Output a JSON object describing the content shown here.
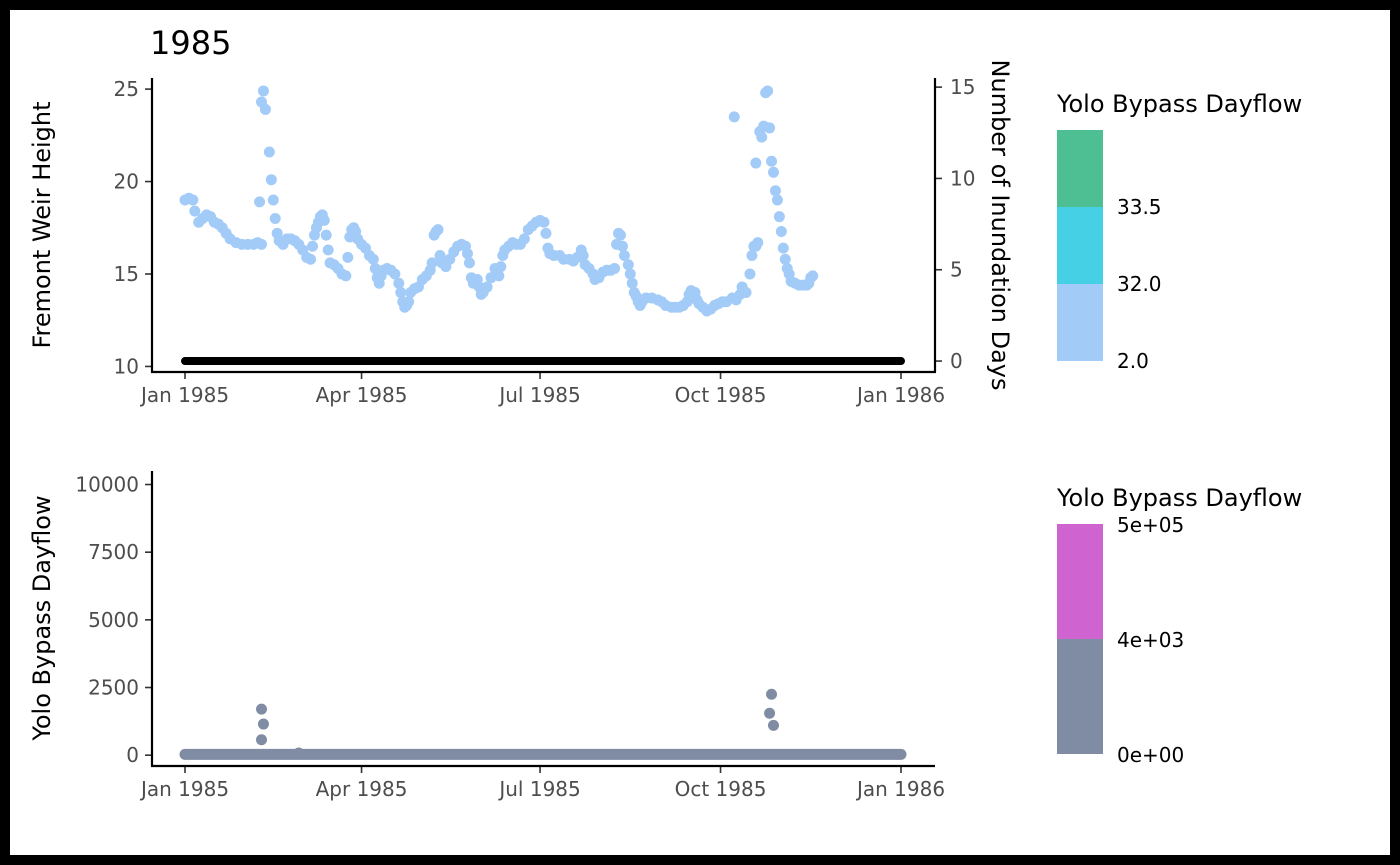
{
  "chart_data": [
    {
      "type": "scatter",
      "title": "1985",
      "ylabel": "Fremont Weir Height",
      "ylabel_right": "Number of Inundation Days",
      "x_ticks": [
        "Jan 1985",
        "Apr 1985",
        "Jul 1985",
        "Oct 1985",
        "Jan 1986"
      ],
      "x_tick_days": [
        0,
        90,
        181,
        273,
        365
      ],
      "ylim": [
        9.7,
        25.6
      ],
      "y_ticks": [
        10,
        15,
        20,
        25
      ],
      "ylim_right": [
        -0.6,
        15.5
      ],
      "y_ticks_right": [
        0,
        5,
        10,
        15
      ],
      "grid": false,
      "series": [
        {
          "color": "#a3cbf8",
          "points": [
            [
              0,
              19.0
            ],
            [
              2,
              19.1
            ],
            [
              4,
              19.0
            ],
            [
              5,
              18.4
            ],
            [
              7,
              17.8
            ],
            [
              9,
              18.0
            ],
            [
              11,
              18.2
            ],
            [
              13,
              18.1
            ],
            [
              15,
              17.8
            ],
            [
              17,
              17.7
            ],
            [
              19,
              17.5
            ],
            [
              21,
              17.2
            ],
            [
              23,
              16.9
            ],
            [
              26,
              16.7
            ],
            [
              29,
              16.6
            ],
            [
              32,
              16.6
            ],
            [
              35,
              16.6
            ],
            [
              37,
              16.7
            ],
            [
              39,
              16.6
            ],
            [
              38,
              18.9
            ],
            [
              39,
              24.3
            ],
            [
              40,
              24.9
            ],
            [
              41,
              23.9
            ],
            [
              43,
              21.6
            ],
            [
              44,
              20.1
            ],
            [
              45,
              19.0
            ],
            [
              46,
              18.0
            ],
            [
              47,
              17.2
            ],
            [
              48,
              16.8
            ],
            [
              50,
              16.6
            ],
            [
              52,
              16.9
            ],
            [
              54,
              16.9
            ],
            [
              56,
              16.8
            ],
            [
              58,
              16.6
            ],
            [
              60,
              16.3
            ],
            [
              62,
              15.9
            ],
            [
              64,
              15.8
            ],
            [
              65,
              16.5
            ],
            [
              66,
              17.1
            ],
            [
              67,
              17.5
            ],
            [
              68,
              17.8
            ],
            [
              69,
              18.1
            ],
            [
              70,
              18.2
            ],
            [
              71,
              17.9
            ],
            [
              72,
              17.1
            ],
            [
              73,
              16.3
            ],
            [
              74,
              15.6
            ],
            [
              76,
              15.5
            ],
            [
              78,
              15.3
            ],
            [
              80,
              15.0
            ],
            [
              82,
              14.9
            ],
            [
              83,
              15.9
            ],
            [
              84,
              17.0
            ],
            [
              85,
              17.4
            ],
            [
              86,
              17.5
            ],
            [
              87,
              17.3
            ],
            [
              88,
              16.9
            ],
            [
              90,
              16.6
            ],
            [
              92,
              16.4
            ],
            [
              94,
              16.0
            ],
            [
              96,
              15.8
            ],
            [
              97,
              15.3
            ],
            [
              98,
              14.8
            ],
            [
              99,
              14.5
            ],
            [
              100,
              14.9
            ],
            [
              101,
              15.2
            ],
            [
              103,
              15.3
            ],
            [
              105,
              15.2
            ],
            [
              107,
              15.0
            ],
            [
              109,
              14.5
            ],
            [
              110,
              14.0
            ],
            [
              111,
              13.5
            ],
            [
              112,
              13.2
            ],
            [
              113,
              13.3
            ],
            [
              114,
              13.5
            ],
            [
              115,
              14.0
            ],
            [
              117,
              14.2
            ],
            [
              119,
              14.3
            ],
            [
              121,
              14.7
            ],
            [
              123,
              14.9
            ],
            [
              125,
              15.2
            ],
            [
              126,
              15.6
            ],
            [
              127,
              17.1
            ],
            [
              128,
              17.3
            ],
            [
              129,
              17.4
            ],
            [
              130,
              16.0
            ],
            [
              131,
              15.6
            ],
            [
              133,
              15.4
            ],
            [
              135,
              15.8
            ],
            [
              137,
              16.2
            ],
            [
              139,
              16.5
            ],
            [
              141,
              16.6
            ],
            [
              143,
              16.5
            ],
            [
              144,
              16.1
            ],
            [
              145,
              15.6
            ],
            [
              146,
              14.8
            ],
            [
              147,
              14.5
            ],
            [
              149,
              14.7
            ],
            [
              150,
              14.3
            ],
            [
              151,
              13.9
            ],
            [
              152,
              14.0
            ],
            [
              154,
              14.3
            ],
            [
              156,
              14.8
            ],
            [
              158,
              15.3
            ],
            [
              159,
              15.2
            ],
            [
              160,
              14.9
            ],
            [
              161,
              15.4
            ],
            [
              162,
              16.0
            ],
            [
              163,
              16.3
            ],
            [
              165,
              16.5
            ],
            [
              167,
              16.7
            ],
            [
              169,
              16.6
            ],
            [
              171,
              16.6
            ],
            [
              173,
              16.9
            ],
            [
              175,
              17.4
            ],
            [
              177,
              17.6
            ],
            [
              179,
              17.8
            ],
            [
              181,
              17.9
            ],
            [
              183,
              17.8
            ],
            [
              184,
              17.2
            ],
            [
              185,
              16.4
            ],
            [
              186,
              16.1
            ],
            [
              188,
              16.0
            ],
            [
              191,
              16.0
            ],
            [
              193,
              15.8
            ],
            [
              196,
              15.8
            ],
            [
              198,
              15.7
            ],
            [
              200,
              15.9
            ],
            [
              202,
              16.3
            ],
            [
              203,
              16.0
            ],
            [
              204,
              15.5
            ],
            [
              206,
              15.3
            ],
            [
              208,
              15.0
            ],
            [
              209,
              14.7
            ],
            [
              211,
              14.8
            ],
            [
              213,
              15.1
            ],
            [
              215,
              15.2
            ],
            [
              217,
              15.2
            ],
            [
              219,
              15.3
            ],
            [
              220,
              16.6
            ],
            [
              221,
              17.2
            ],
            [
              222,
              17.1
            ],
            [
              223,
              16.5
            ],
            [
              224,
              16.0
            ],
            [
              226,
              15.5
            ],
            [
              227,
              15.0
            ],
            [
              228,
              14.5
            ],
            [
              229,
              14.0
            ],
            [
              230,
              13.8
            ],
            [
              231,
              13.5
            ],
            [
              232,
              13.3
            ],
            [
              233,
              13.5
            ],
            [
              235,
              13.7
            ],
            [
              238,
              13.7
            ],
            [
              241,
              13.6
            ],
            [
              243,
              13.5
            ],
            [
              245,
              13.3
            ],
            [
              248,
              13.2
            ],
            [
              250,
              13.2
            ],
            [
              252,
              13.2
            ],
            [
              254,
              13.3
            ],
            [
              256,
              13.5
            ],
            [
              257,
              13.9
            ],
            [
              258,
              14.1
            ],
            [
              260,
              14.0
            ],
            [
              261,
              13.6
            ],
            [
              262,
              13.4
            ],
            [
              264,
              13.2
            ],
            [
              266,
              13.0
            ],
            [
              268,
              13.1
            ],
            [
              270,
              13.3
            ],
            [
              272,
              13.4
            ],
            [
              274,
              13.5
            ],
            [
              276,
              13.5
            ],
            [
              279,
              13.7
            ],
            [
              281,
              13.6
            ],
            [
              283,
              13.9
            ],
            [
              284,
              14.3
            ],
            [
              286,
              14.0
            ],
            [
              288,
              15.0
            ],
            [
              289,
              16.0
            ],
            [
              290,
              16.5
            ],
            [
              291,
              16.5
            ],
            [
              292,
              16.7
            ],
            [
              280,
              23.5
            ],
            [
              291,
              21.0
            ],
            [
              293,
              22.7
            ],
            [
              294,
              22.4
            ],
            [
              295,
              23.0
            ],
            [
              296,
              24.8
            ],
            [
              297,
              24.9
            ],
            [
              298,
              22.9
            ],
            [
              299,
              21.1
            ],
            [
              300,
              20.5
            ],
            [
              301,
              19.5
            ],
            [
              302,
              19.0
            ],
            [
              303,
              18.1
            ],
            [
              304,
              17.3
            ],
            [
              305,
              16.4
            ],
            [
              306,
              15.8
            ],
            [
              307,
              15.3
            ],
            [
              308,
              15.0
            ],
            [
              309,
              14.6
            ],
            [
              311,
              14.5
            ],
            [
              313,
              14.4
            ],
            [
              315,
              14.4
            ],
            [
              317,
              14.4
            ],
            [
              318,
              14.5
            ],
            [
              319,
              14.8
            ],
            [
              320,
              14.9
            ]
          ]
        },
        {
          "color": "#000000",
          "y_axis": "right",
          "x_range": [
            0,
            365
          ],
          "value": 0
        }
      ],
      "legend": {
        "title": "Yolo Bypass Dayflow",
        "placement": "right",
        "bins": [
          {
            "color": "#a3cbf8",
            "label": "2.0"
          },
          {
            "color": "#45d0e6",
            "label": "32.0"
          },
          {
            "color": "#4dbf92",
            "label": "33.5"
          }
        ]
      }
    },
    {
      "type": "scatter",
      "ylabel": "Yolo Bypass Dayflow",
      "x_ticks": [
        "Jan 1985",
        "Apr 1985",
        "Jul 1985",
        "Oct 1985",
        "Jan 1986"
      ],
      "x_tick_days": [
        0,
        90,
        181,
        273,
        365
      ],
      "ylim": [
        -400,
        10500
      ],
      "y_ticks": [
        0,
        2500,
        5000,
        7500,
        10000
      ],
      "grid": false,
      "series": [
        {
          "color": "#808ca3",
          "baseline": {
            "x_range": [
              0,
              365
            ],
            "value": 30
          },
          "points": [
            [
              39,
              570
            ],
            [
              39,
              1700
            ],
            [
              40,
              1150
            ],
            [
              58,
              80
            ],
            [
              298,
              1550
            ],
            [
              299,
              2250
            ],
            [
              300,
              1100
            ]
          ]
        }
      ],
      "legend": {
        "title": "Yolo Bypass Dayflow",
        "placement": "right",
        "bins": [
          {
            "color": "#808ca3",
            "label": "0e+00"
          },
          {
            "color": "#cf63cf",
            "label": "4e+03"
          },
          {
            "color": "",
            "label": "5e+05"
          }
        ]
      }
    }
  ]
}
